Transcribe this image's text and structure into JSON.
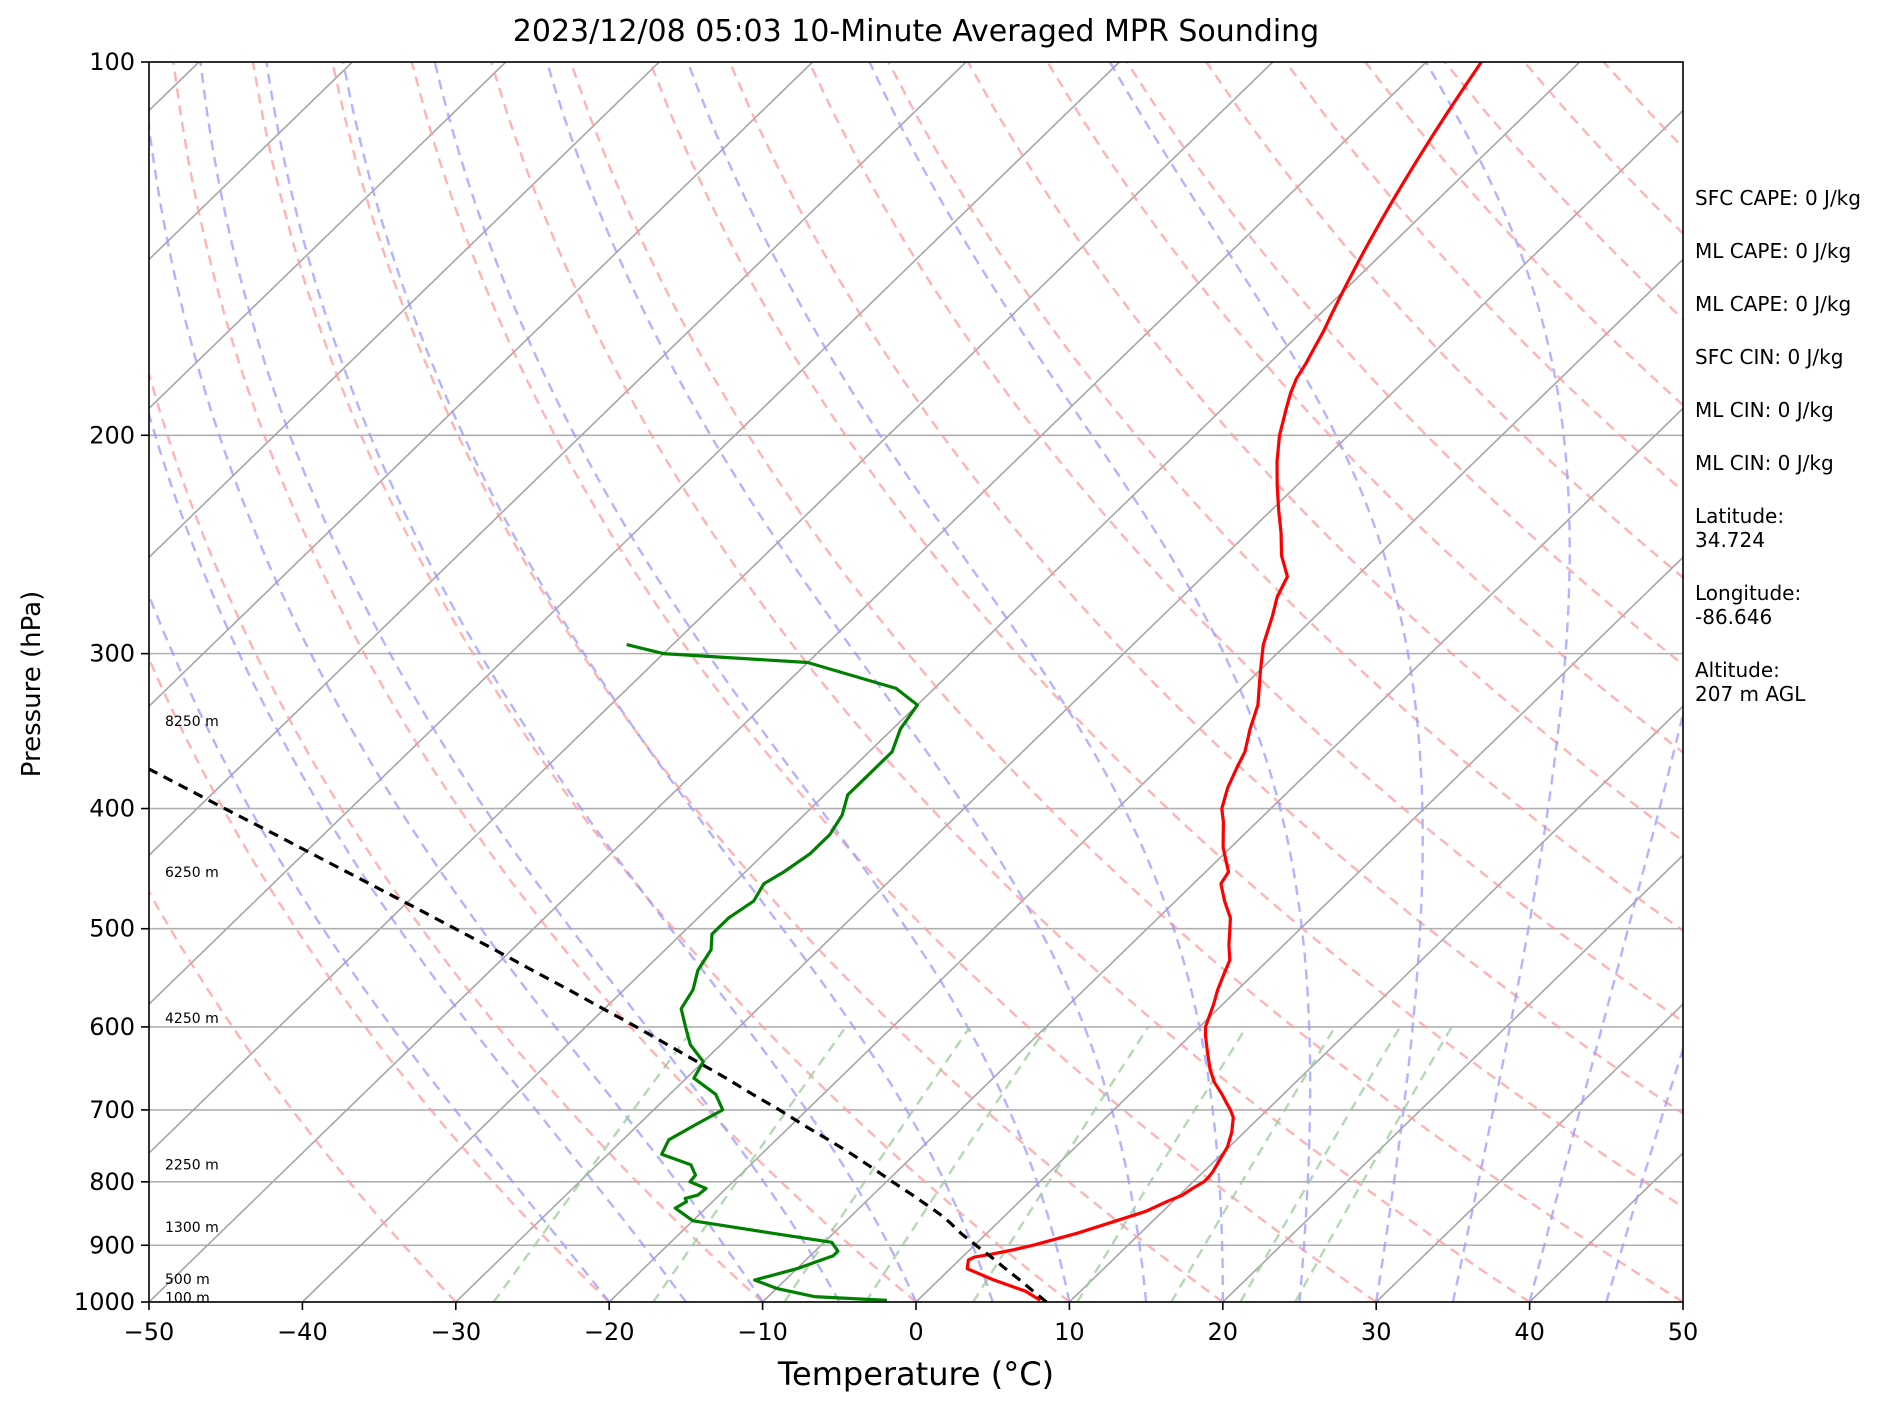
{
  "chart_data": {
    "type": "skew-t",
    "title": "2023/12/08 05:03 10-Minute Averaged MPR Sounding",
    "xlabel": "Temperature (°C)",
    "ylabel": "Pressure (hPa)",
    "xlim": [
      -50,
      50
    ],
    "ylim": [
      1000,
      100
    ],
    "y_scale": "log",
    "x_ticks": [
      "−50",
      "−40",
      "−30",
      "−20",
      "−10",
      "0",
      "10",
      "20",
      "30",
      "40",
      "50"
    ],
    "x_tick_values": [
      -50,
      -40,
      -30,
      -20,
      -10,
      0,
      10,
      20,
      30,
      40,
      50
    ],
    "y_ticks": [
      100,
      200,
      300,
      400,
      500,
      600,
      700,
      800,
      900,
      1000
    ],
    "grid": true,
    "height_labels": [
      {
        "p": 340,
        "label": "8250 m"
      },
      {
        "p": 450,
        "label": "6250 m"
      },
      {
        "p": 590,
        "label": "4250 m"
      },
      {
        "p": 775,
        "label": "2250 m"
      },
      {
        "p": 870,
        "label": "1300 m"
      },
      {
        "p": 958,
        "label": "500 m"
      },
      {
        "p": 992,
        "label": "100 m"
      }
    ],
    "series": [
      {
        "kind": "temperature",
        "color": "#ff0000",
        "p": [
          997,
          980,
          960,
          940,
          925,
          920,
          915,
          908,
          900,
          880,
          860,
          845,
          830,
          820,
          810,
          800,
          795,
          785,
          770,
          750,
          730,
          710,
          700,
          690,
          680,
          665,
          650,
          630,
          610,
          600,
          590,
          575,
          560,
          545,
          530,
          515,
          500,
          490,
          475,
          460,
          450,
          430,
          410,
          400,
          385,
          370,
          360,
          345,
          330,
          310,
          295,
          280,
          270,
          260,
          250,
          240,
          230,
          220,
          210,
          200,
          190,
          185,
          180,
          175,
          170,
          165,
          160,
          155,
          150,
          145,
          140,
          135,
          130,
          125,
          120,
          115,
          110,
          105,
          100
        ],
        "t": [
          8.0,
          6.4,
          3.6,
          1.1,
          0.6,
          0.8,
          1.7,
          2.8,
          3.8,
          5.9,
          7.6,
          8.9,
          9.6,
          10.2,
          10.4,
          10.7,
          10.7,
          10.6,
          10.3,
          9.9,
          9.2,
          8.3,
          7.6,
          6.8,
          6.0,
          4.7,
          3.6,
          2.3,
          1.0,
          0.4,
          0.0,
          -0.6,
          -1.3,
          -1.9,
          -2.5,
          -3.6,
          -4.6,
          -5.3,
          -6.8,
          -8.2,
          -8.5,
          -10.5,
          -12.2,
          -13.2,
          -14.2,
          -15.0,
          -15.5,
          -16.7,
          -17.8,
          -19.9,
          -21.5,
          -22.8,
          -23.8,
          -24.5,
          -26.3,
          -27.8,
          -29.5,
          -31.2,
          -32.9,
          -34.5,
          -35.9,
          -36.6,
          -37.2,
          -37.6,
          -38.1,
          -38.6,
          -39.2,
          -39.8,
          -40.4,
          -41.0,
          -41.6,
          -42.2,
          -42.8,
          -43.4,
          -44.0,
          -44.6,
          -45.2,
          -45.8,
          -46.4
        ]
      },
      {
        "kind": "dewpoint",
        "color": "#008000",
        "p": [
          997,
          990,
          975,
          960,
          950,
          940,
          925,
          918,
          910,
          895,
          880,
          860,
          840,
          830,
          825,
          820,
          810,
          800,
          790,
          775,
          760,
          740,
          720,
          700,
          680,
          660,
          640,
          620,
          600,
          580,
          560,
          540,
          520,
          505,
          490,
          475,
          460,
          450,
          435,
          420,
          405,
          390,
          375,
          360,
          345,
          330,
          320,
          305,
          300,
          295
        ],
        "td": [
          -2,
          -7,
          -10,
          -12,
          -11,
          -10,
          -9,
          -8.5,
          -8.5,
          -9.5,
          -14,
          -20,
          -22,
          -21.7,
          -22,
          -21.4,
          -21.3,
          -22.8,
          -22.9,
          -23.9,
          -26.5,
          -27,
          -26.3,
          -25.5,
          -27,
          -29.5,
          -30,
          -32,
          -33.5,
          -35,
          -35.5,
          -36.5,
          -37,
          -38,
          -38,
          -37.5,
          -38,
          -37.5,
          -37,
          -37,
          -37.5,
          -38.5,
          -38.5,
          -38.5,
          -39.5,
          -40,
          -42.5,
          -50,
          -60,
          -63
        ]
      },
      {
        "kind": "parcel",
        "color": "#000000",
        "p": [
          1000,
          980,
          960,
          940,
          920,
          900,
          880,
          862,
          850,
          840,
          820,
          800,
          780,
          760,
          740,
          720,
          700,
          680,
          660,
          640,
          620,
          600,
          580,
          560,
          540,
          520,
          500,
          480,
          460,
          440,
          420,
          400,
          380,
          360,
          340,
          320,
          300,
          290,
          280,
          270
        ],
        "t": [
          8.5,
          6.9,
          5.3,
          3.6,
          1.9,
          0.1,
          -1.7,
          -3.2,
          -4.3,
          -5.3,
          -7.4,
          -9.6,
          -11.8,
          -14.1,
          -16.6,
          -19.2,
          -21.8,
          -24.6,
          -27.4,
          -30.4,
          -33.5,
          -36.7,
          -40.1,
          -43.6,
          -47.3,
          -51.1,
          -55.1,
          -59.3,
          -63.7,
          -68.3,
          -73.1,
          -78.2,
          -83.5,
          -89.1,
          -95.0,
          -101.3,
          -108.0,
          -111.5,
          -115.1,
          -118.9
        ]
      }
    ]
  },
  "stats": [
    "SFC CAPE: 0 J/kg",
    "ML CAPE: 0 J/kg",
    "ML CAPE: 0 J/kg",
    "SFC CIN: 0 J/kg",
    "ML CIN: 0 J/kg",
    "ML CIN: 0 J/kg"
  ],
  "location": {
    "latitude_label": "Latitude:",
    "latitude": "34.724",
    "longitude_label": "Longitude:",
    "longitude": "-86.646",
    "altitude_label": "Altitude:",
    "altitude": "207 m AGL"
  },
  "colors": {
    "temperature": "#ff0000",
    "dewpoint": "#008000",
    "parcel": "#000000",
    "dry_adiabats": "#ff9999",
    "moist_adiabats": "#9999ff",
    "mixing_ratio": "#99cc99",
    "isotherms": "#999999"
  }
}
